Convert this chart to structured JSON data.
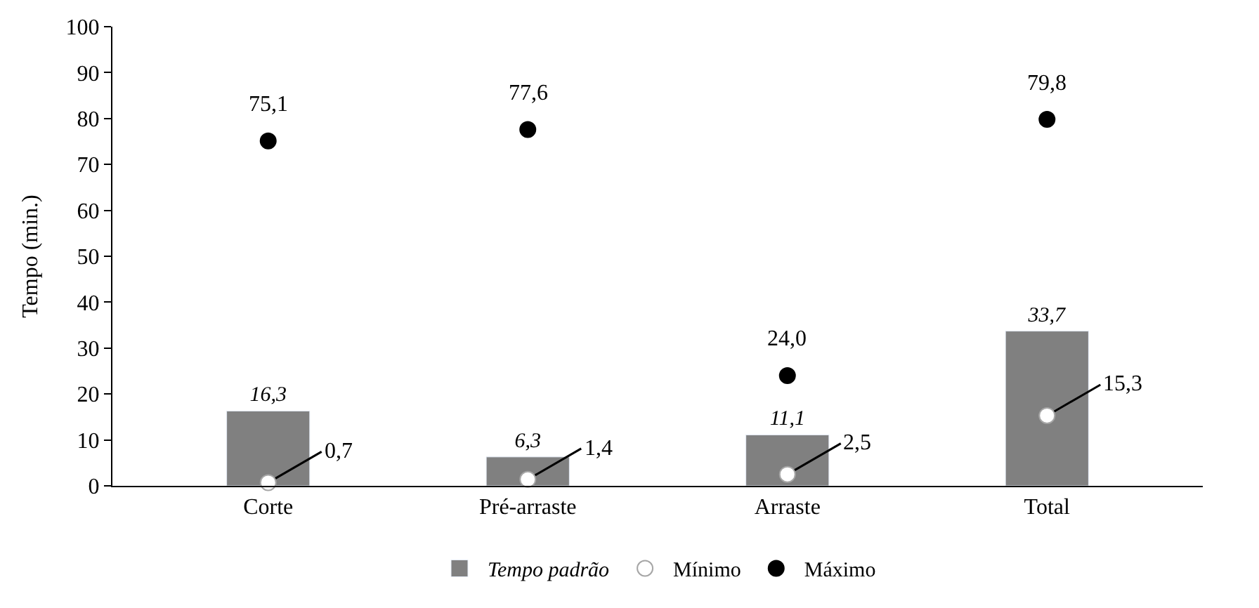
{
  "chart_data": {
    "type": "bar",
    "ylabel": "Tempo (min.)",
    "categories": [
      "Corte",
      "Pré-arraste",
      "Arraste",
      "Total"
    ],
    "series": [
      {
        "name": "Tempo padrão",
        "color": "#808080",
        "values": [
          16.3,
          6.3,
          11.1,
          33.7
        ],
        "value_labels": [
          "16,3",
          "6,3",
          "11,1",
          "33,7"
        ]
      },
      {
        "name": "Mínimo",
        "type": "scatter",
        "color": "#ffffff",
        "values": [
          0.7,
          1.4,
          2.5,
          15.3
        ],
        "value_labels": [
          "0,7",
          "1,4",
          "2,5",
          "15,3"
        ]
      },
      {
        "name": "Máximo",
        "type": "scatter",
        "color": "#000000",
        "values": [
          75.1,
          77.6,
          24.0,
          79.8
        ],
        "value_labels": [
          "75,1",
          "77,6",
          "24,0",
          "79,8"
        ]
      }
    ],
    "ylim": [
      0,
      100
    ],
    "yticks": [
      0,
      10,
      20,
      30,
      40,
      50,
      60,
      70,
      80,
      90,
      100
    ],
    "grid": false,
    "legend": "bottom",
    "marker": "circle"
  }
}
